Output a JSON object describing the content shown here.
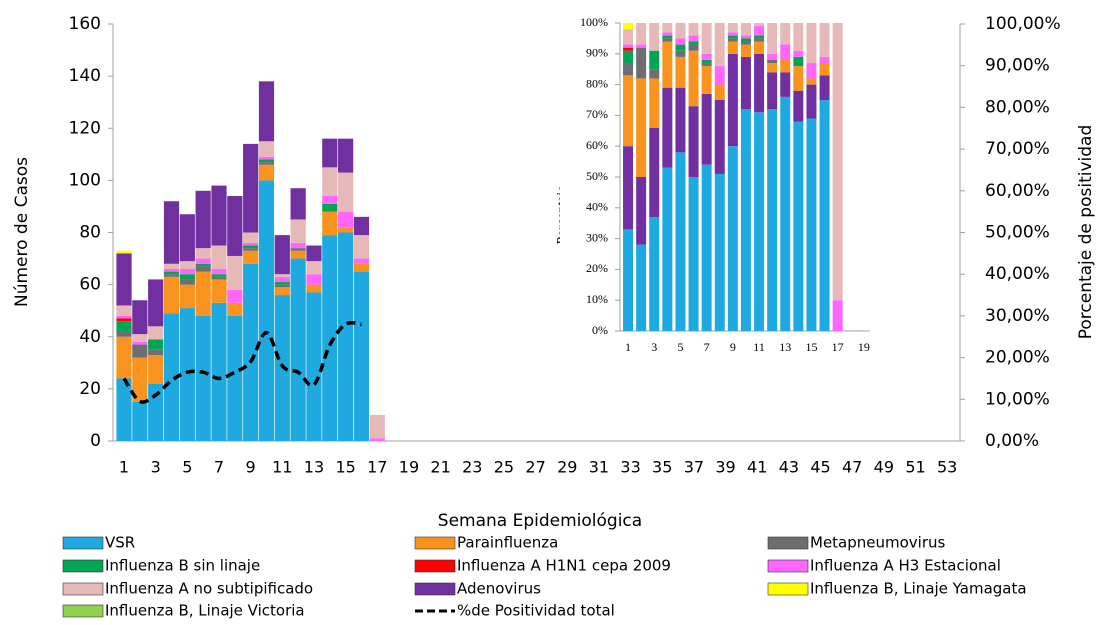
{
  "chart_data": [
    {
      "type": "bar",
      "stacked": true,
      "xlabel": "Semana Epidemiológica",
      "ylabel": "Número de Casos",
      "y2label": "Porcentaje  de positividad",
      "categories": [
        1,
        null,
        3,
        null,
        5,
        null,
        7,
        null,
        9,
        null,
        11,
        null,
        13,
        null,
        15,
        null,
        17,
        null,
        19,
        null,
        21,
        null,
        23,
        null,
        25,
        null,
        27,
        null,
        29,
        null,
        31,
        null,
        33,
        null,
        35,
        null,
        37,
        null,
        39,
        null,
        41,
        null,
        43,
        null,
        45,
        null,
        47,
        null,
        49,
        null,
        51,
        null,
        53
      ],
      "ylim": [
        0,
        160
      ],
      "yticks": [
        0,
        20,
        40,
        60,
        80,
        100,
        120,
        140,
        160
      ],
      "y2lim": [
        0,
        100
      ],
      "y2ticks": [
        {
          "value": 0,
          "label": "0,00%"
        },
        {
          "value": 10,
          "label": "10,00%"
        },
        {
          "value": 20,
          "label": "20,00%"
        },
        {
          "value": 30,
          "label": "30,00%"
        },
        {
          "value": 40,
          "label": "40,00%"
        },
        {
          "value": 50,
          "label": "50,00%"
        },
        {
          "value": 60,
          "label": "60,00%"
        },
        {
          "value": 70,
          "label": "70,00%"
        },
        {
          "value": 80,
          "label": "80,00%"
        },
        {
          "value": 90,
          "label": "90,00%"
        },
        {
          "value": 100,
          "label": "100,00%"
        }
      ],
      "series": [
        {
          "name": "VSR",
          "color": "#1fa9e1",
          "values": [
            24,
            15,
            22,
            49,
            51,
            48,
            53,
            48,
            68,
            100,
            56,
            70,
            57,
            79,
            80,
            65,
            0,
            null,
            null,
            null,
            null,
            null,
            null,
            null,
            null,
            null,
            null,
            null,
            null,
            null,
            null,
            null,
            null,
            null,
            null,
            null,
            null,
            null,
            null,
            null,
            null,
            null,
            null,
            null,
            null,
            null,
            null,
            null,
            null,
            null,
            null,
            null,
            null
          ]
        },
        {
          "name": "Parainfluenza",
          "color": "#f7931e",
          "values": [
            16,
            17,
            11,
            14,
            9,
            17,
            9,
            5,
            5,
            6,
            3,
            3,
            3,
            9,
            2,
            3,
            0,
            null,
            null,
            null,
            null,
            null,
            null,
            null,
            null,
            null,
            null,
            null,
            null,
            null,
            null,
            null,
            null,
            null,
            null,
            null,
            null,
            null,
            null,
            null,
            null,
            null,
            null,
            null,
            null,
            null,
            null,
            null,
            null,
            null,
            null,
            null,
            null
          ]
        },
        {
          "name": "Metapneumovirus",
          "color": "#6d6e71",
          "values": [
            2,
            5,
            2,
            1,
            2,
            2,
            1,
            0,
            1,
            1,
            1,
            1,
            0,
            0,
            0,
            0,
            0,
            null,
            null,
            null,
            null,
            null,
            null,
            null,
            null,
            null,
            null,
            null,
            null,
            null,
            null,
            null,
            null,
            null,
            null,
            null,
            null,
            null,
            null,
            null,
            null,
            null,
            null,
            null,
            null,
            null,
            null,
            null,
            null,
            null,
            null,
            null,
            null
          ]
        },
        {
          "name": "Influenza B sin linaje",
          "color": "#00a651",
          "values": [
            4,
            0,
            4,
            1,
            2,
            1,
            1,
            0,
            1,
            1,
            1,
            0,
            0,
            3,
            0,
            0,
            0,
            null,
            null,
            null,
            null,
            null,
            null,
            null,
            null,
            null,
            null,
            null,
            null,
            null,
            null,
            null,
            null,
            null,
            null,
            null,
            null,
            null,
            null,
            null,
            null,
            null,
            null,
            null,
            null,
            null,
            null,
            null,
            null,
            null,
            null,
            null,
            null
          ]
        },
        {
          "name": "Influenza A H1N1 cepa 2009",
          "color": "#ff0000",
          "values": [
            1,
            0,
            0,
            0,
            0,
            0,
            0,
            0,
            0,
            0,
            0,
            0,
            0,
            0,
            0,
            0,
            0,
            null,
            null,
            null,
            null,
            null,
            null,
            null,
            null,
            null,
            null,
            null,
            null,
            null,
            null,
            null,
            null,
            null,
            null,
            null,
            null,
            null,
            null,
            null,
            null,
            null,
            null,
            null,
            null,
            null,
            null,
            null,
            null,
            null,
            null,
            null,
            null
          ]
        },
        {
          "name": " Influenza A H3 Estacional",
          "color": "#ff66ff",
          "values": [
            1,
            1,
            0,
            1,
            2,
            2,
            2,
            5,
            1,
            1,
            2,
            2,
            4,
            3,
            6,
            2,
            1,
            null,
            null,
            null,
            null,
            null,
            null,
            null,
            null,
            null,
            null,
            null,
            null,
            null,
            null,
            null,
            null,
            null,
            null,
            null,
            null,
            null,
            null,
            null,
            null,
            null,
            null,
            null,
            null,
            null,
            null,
            null,
            null,
            null,
            null,
            null,
            null
          ]
        },
        {
          "name": "Influenza A no subtipificado",
          "color": "#e6b9b8",
          "values": [
            4,
            3,
            5,
            2,
            3,
            4,
            9,
            13,
            4,
            6,
            1,
            9,
            5,
            11,
            15,
            9,
            9,
            null,
            null,
            null,
            null,
            null,
            null,
            null,
            null,
            null,
            null,
            null,
            null,
            null,
            null,
            null,
            null,
            null,
            null,
            null,
            null,
            null,
            null,
            null,
            null,
            null,
            null,
            null,
            null,
            null,
            null,
            null,
            null,
            null,
            null,
            null,
            null
          ]
        },
        {
          "name": "Adenovirus",
          "color": "#7030a0",
          "values": [
            20,
            13,
            18,
            24,
            18,
            22,
            23,
            23,
            34,
            23,
            15,
            12,
            6,
            11,
            13,
            7,
            0,
            null,
            null,
            null,
            null,
            null,
            null,
            null,
            null,
            null,
            null,
            null,
            null,
            null,
            null,
            null,
            null,
            null,
            null,
            null,
            null,
            null,
            null,
            null,
            null,
            null,
            null,
            null,
            null,
            null,
            null,
            null,
            null,
            null,
            null,
            null,
            null
          ]
        },
        {
          "name": "Influenza B, Linaje Yamagata",
          "color": "#ffff00",
          "values": [
            1,
            0,
            0,
            0,
            0,
            0,
            0,
            0,
            0,
            0,
            0,
            0,
            0,
            0,
            0,
            0,
            0,
            null,
            null,
            null,
            null,
            null,
            null,
            null,
            null,
            null,
            null,
            null,
            null,
            null,
            null,
            null,
            null,
            null,
            null,
            null,
            null,
            null,
            null,
            null,
            null,
            null,
            null,
            null,
            null,
            null,
            null,
            null,
            null,
            null,
            null,
            null,
            null
          ]
        },
        {
          "name": "Influenza B, Linaje Victoria",
          "color": "#92d050",
          "values": [
            0,
            0,
            0,
            0,
            0,
            0,
            0,
            0,
            0,
            0,
            0,
            0,
            0,
            0,
            0,
            0,
            0,
            null,
            null,
            null,
            null,
            null,
            null,
            null,
            null,
            null,
            null,
            null,
            null,
            null,
            null,
            null,
            null,
            null,
            null,
            null,
            null,
            null,
            null,
            null,
            null,
            null,
            null,
            null,
            null,
            null,
            null,
            null,
            null,
            null,
            null,
            null,
            null
          ]
        },
        {
          "name": "%de Positividad total",
          "type": "line",
          "axis": "y2",
          "dashed": true,
          "color": "#000000",
          "values": [
            15,
            9.5,
            11,
            14.5,
            16.5,
            16.5,
            15,
            16.5,
            19,
            26,
            18,
            16.5,
            13.5,
            23,
            28,
            28,
            null,
            null,
            null,
            null,
            null,
            null,
            null,
            null,
            null,
            null,
            null,
            null,
            null,
            null,
            null,
            null,
            null,
            null,
            null,
            null,
            null,
            null,
            null,
            null,
            null,
            null,
            null,
            null,
            null,
            null,
            null,
            null,
            null,
            null,
            null,
            null,
            null
          ]
        }
      ]
    },
    {
      "type": "bar",
      "stacked": true,
      "ylabel": "Porcentaje",
      "categories": [
        1,
        null,
        3,
        null,
        5,
        null,
        7,
        null,
        9,
        null,
        11,
        null,
        13,
        null,
        15,
        null,
        17,
        null,
        19
      ],
      "ylim": [
        0,
        100
      ],
      "yticks": [
        {
          "value": 0,
          "label": "0%"
        },
        {
          "value": 10,
          "label": "10%"
        },
        {
          "value": 20,
          "label": "20%"
        },
        {
          "value": 30,
          "label": "30%"
        },
        {
          "value": 40,
          "label": "40%"
        },
        {
          "value": 50,
          "label": "50%"
        },
        {
          "value": 60,
          "label": "60%"
        },
        {
          "value": 70,
          "label": "70%"
        },
        {
          "value": 80,
          "label": "80%"
        },
        {
          "value": 90,
          "label": "90%"
        },
        {
          "value": 100,
          "label": "100%"
        }
      ],
      "series": [
        {
          "color": "#1fa9e1",
          "values": [
            33,
            28,
            37,
            53,
            58,
            50,
            54,
            51,
            60,
            72,
            71,
            72,
            76,
            68,
            69,
            75,
            0,
            null,
            null
          ]
        },
        {
          "color": "#7030a0",
          "values": [
            27,
            22,
            29,
            26,
            21,
            23,
            23,
            24,
            30,
            17,
            19,
            12,
            8,
            10,
            11,
            8,
            0,
            null,
            null
          ]
        },
        {
          "color": "#f7931e",
          "values": [
            23,
            32,
            16,
            15,
            10,
            18,
            9,
            5,
            4,
            4,
            4,
            3,
            4,
            8,
            2,
            4,
            0,
            null,
            null
          ]
        },
        {
          "color": "#6d6e71",
          "values": [
            4,
            10,
            3,
            1,
            2,
            2,
            1,
            0,
            1,
            1,
            1,
            1,
            0,
            0,
            0,
            0,
            0,
            null,
            null
          ]
        },
        {
          "color": "#00a651",
          "values": [
            4,
            0,
            6,
            1,
            2,
            1,
            1,
            0,
            1,
            1,
            1,
            0,
            0,
            3,
            0,
            0,
            0,
            null,
            null
          ]
        },
        {
          "color": "#ff0000",
          "values": [
            1,
            0,
            0,
            0,
            0,
            0,
            0,
            0,
            0,
            0,
            0,
            0,
            0,
            0,
            0,
            0,
            0,
            null,
            null
          ]
        },
        {
          "color": "#ff66ff",
          "values": [
            1,
            1,
            0,
            1,
            2,
            2,
            2,
            6,
            1,
            1,
            3,
            2,
            5,
            2,
            5,
            2,
            10,
            null,
            null
          ]
        },
        {
          "color": "#e6b9b8",
          "values": [
            5,
            7,
            9,
            3,
            5,
            4,
            10,
            14,
            3,
            4,
            1,
            10,
            7,
            9,
            13,
            11,
            90,
            null,
            null
          ]
        },
        {
          "color": "#ffff00",
          "values": [
            2,
            0,
            0,
            0,
            0,
            0,
            0,
            0,
            0,
            0,
            0,
            0,
            0,
            0,
            0,
            0,
            0,
            null,
            null
          ]
        },
        {
          "color": "#92d050",
          "values": [
            0,
            0,
            0,
            0,
            0,
            0,
            0,
            0,
            0,
            0,
            0,
            0,
            0,
            0,
            0,
            0,
            0,
            null,
            null
          ]
        }
      ]
    }
  ]
}
